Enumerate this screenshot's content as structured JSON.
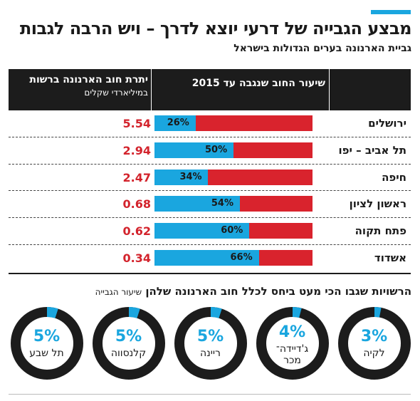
{
  "colors": {
    "accent": "#1aa6df",
    "bar_remaining": "#d9232d",
    "debt_text": "#d3232c",
    "header_bg": "#1c1c1c",
    "donut_track": "#1c1c1c"
  },
  "header": {
    "title": "מבצע הגבייה של דרעי יוצא לדרך – ויש הרבה לגבות",
    "subtitle": "גביית הארנונה בערים הגדולות בישראל"
  },
  "table": {
    "col_rate": "שיעור החוב שנגבה עד 2015",
    "col_debt": "יתרת חוב הארנונה ברשות",
    "col_debt_unit": "במיליארדי שקלים"
  },
  "donut_section": {
    "title": "הרשויות שגבו הכי מעט ביחס לכלל חוב הארנונה שלהן",
    "legend": "שיעור הגבייה"
  },
  "chart_data": [
    {
      "type": "bar",
      "title": "",
      "categories": [
        "ירושלים",
        "תל אביב – יפו",
        "חיפה",
        "ראשון לציון",
        "פתח תקוה",
        "אשדוד"
      ],
      "series": [
        {
          "name": "שיעור החוב שנגבה עד 2015",
          "values": [
            26,
            50,
            34,
            54,
            60,
            66
          ],
          "labels": [
            "26%",
            "50%",
            "34%",
            "54%",
            "60%",
            "66%"
          ]
        },
        {
          "name": "יתרת חוב הארנונה ברשות",
          "values": [
            5.54,
            2.94,
            2.47,
            0.68,
            0.62,
            0.34
          ],
          "labels": [
            "5.54",
            "2.94",
            "2.47",
            "0.68",
            "0.62",
            "0.34"
          ]
        }
      ],
      "ylim": [
        0,
        100
      ]
    },
    {
      "type": "pie",
      "title": "הרשויות שגבו הכי מעט ביחס לכלל חוב הארנונה שלהן",
      "categories": [
        "לקיה",
        "ג'דיידה־מכר",
        "ריינה",
        "קלנסווה",
        "תל שבע"
      ],
      "values": [
        3,
        4,
        5,
        5,
        5
      ],
      "labels": [
        "3%",
        "4%",
        "5%",
        "5%",
        "5%"
      ],
      "name_lines": [
        [
          "לקיה"
        ],
        [
          "ג'דיידה־",
          "מכר"
        ],
        [
          "ריינה"
        ],
        [
          "קלנסווה"
        ],
        [
          "תל שבע"
        ]
      ]
    }
  ]
}
